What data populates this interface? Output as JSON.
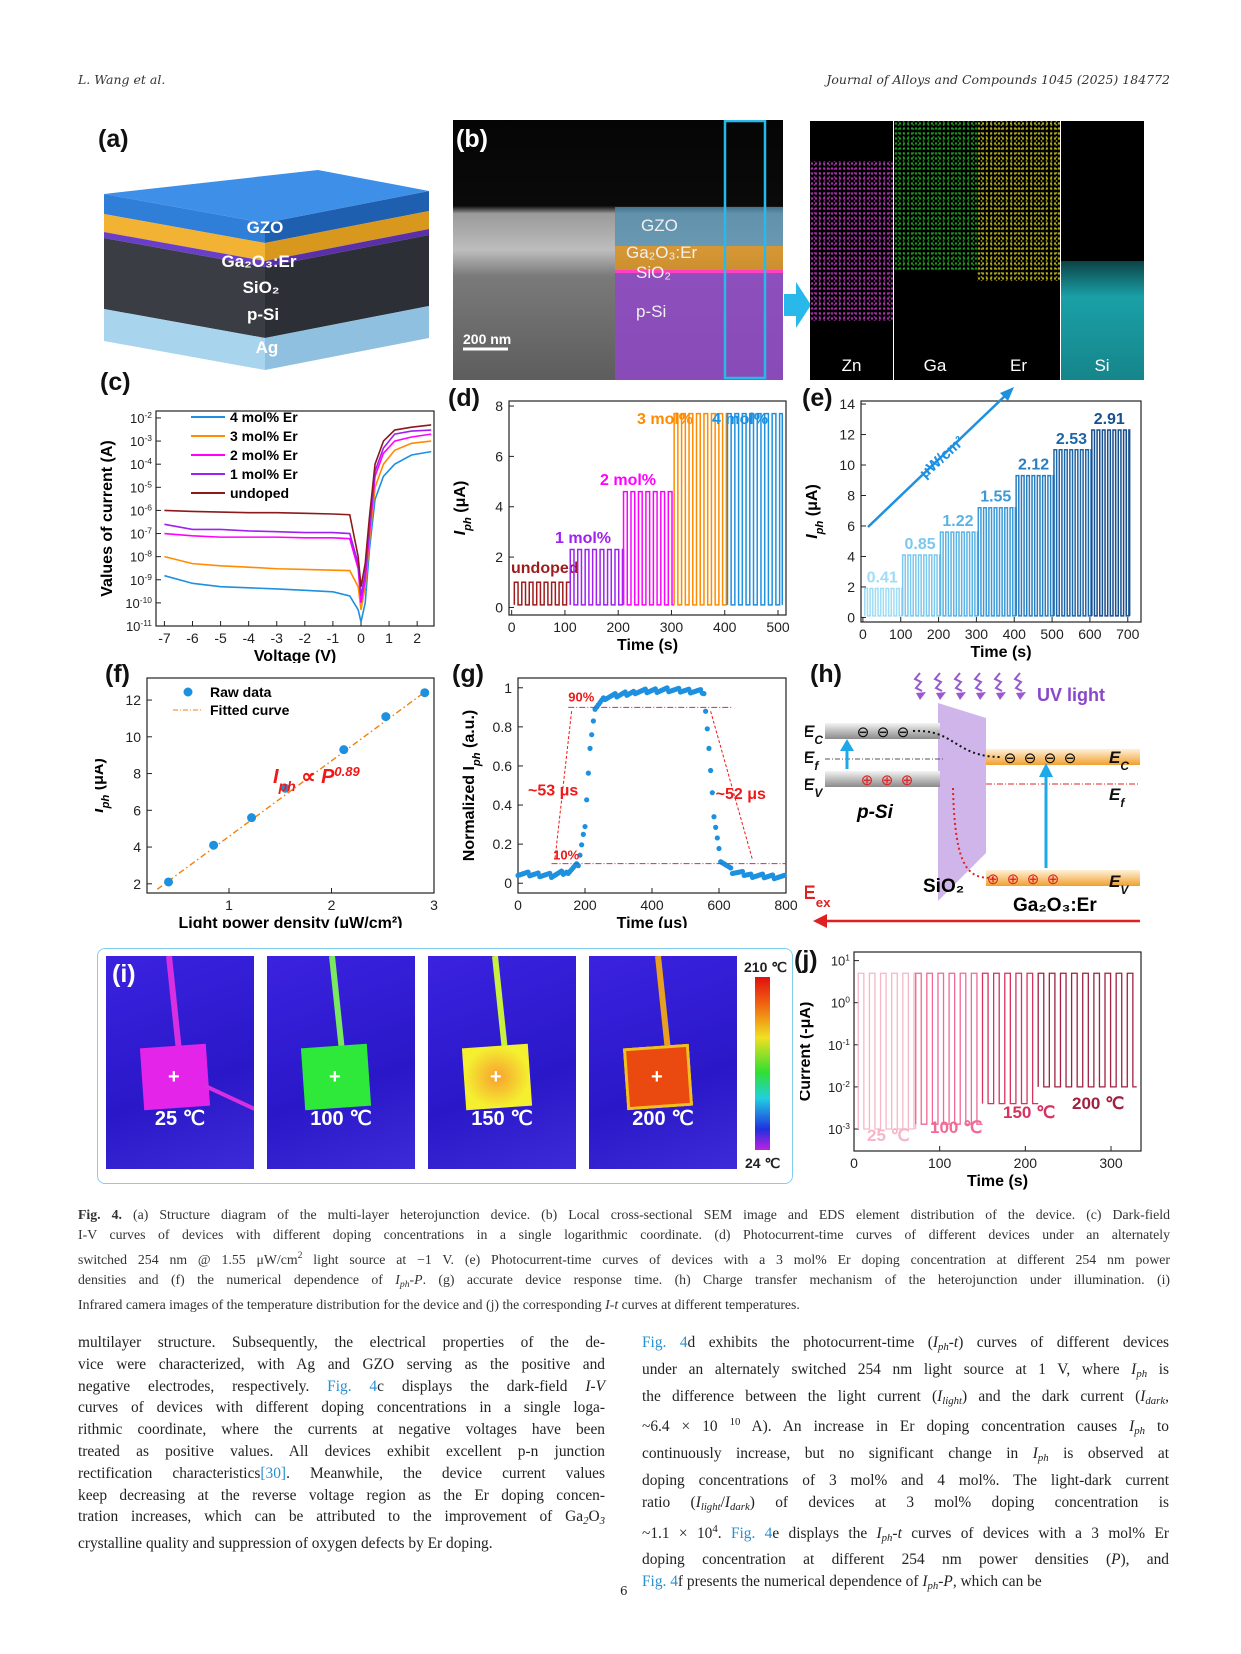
{
  "header": {
    "authors": "L. Wang et al.",
    "journal": "Journal of Alloys and Compounds 1045 (2025) 184772"
  },
  "figure": {
    "panel_labels": [
      "(a)",
      "(b)",
      "(c)",
      "(d)",
      "(e)",
      "(f)",
      "(g)",
      "(h)",
      "(i)",
      "(j)"
    ],
    "panel_a": {
      "layers": [
        "GZO",
        "Ga₂O₃:Er",
        "SiO₂",
        "p-Si",
        "Ag"
      ],
      "colors": [
        "#2f7fd8",
        "#f2b233",
        "#6a3fc8",
        "#3a3d44",
        "#a8d4ee"
      ]
    },
    "panel_b": {
      "layers": [
        "GZO",
        "Ga₂O₃:Er",
        "SiO₂",
        "p-Si"
      ],
      "scale_bar": "200 nm"
    },
    "eds": [
      {
        "label": "Zn",
        "color": "#e040e0"
      },
      {
        "label": "Ga",
        "color": "#22cc22"
      },
      {
        "label": "Er",
        "color": "#e8e020"
      },
      {
        "label": "Si",
        "color": "#20c8d0"
      }
    ],
    "panel_h": {
      "uv": "UV light",
      "ec": "E",
      "ec_sub": "C",
      "ef": "E",
      "ef_sub": "f",
      "ev": "E",
      "ev_sub": "V",
      "psi": "p-Si",
      "sio2": "SiO₂",
      "ga2o3": "Ga₂O₃:Er",
      "eex": "E",
      "eex_sub": "ex",
      "electron": "⊖",
      "hole": "⊕"
    },
    "panel_i": {
      "tiles": [
        {
          "temp": "25 ℃",
          "square": "#e424e8",
          "wire": "#d830e0"
        },
        {
          "temp": "100 ℃",
          "square": "#2ee83a",
          "wire": "#7ae860"
        },
        {
          "temp": "150 ℃",
          "square": "#f4f030",
          "wire": "#c8f040"
        },
        {
          "temp": "200 ℃",
          "square": "#ea4a10",
          "wire": "#e8a020"
        }
      ],
      "colorbar_max": "210 ℃",
      "colorbar_min": "24 ℃",
      "plus": "+"
    }
  },
  "chart_data": [
    {
      "id": "c",
      "type": "line",
      "xlabel": "Voltage (V)",
      "ylabel": "Values of current (A)",
      "xlim": [
        -7.3,
        2.6
      ],
      "ylim": [
        1e-11,
        0.02
      ],
      "ylog": true,
      "x_ticks": [
        -7,
        -6,
        -5,
        -4,
        -3,
        -2,
        -1,
        0,
        1,
        2
      ],
      "y_tick_exponents": [
        -2,
        -3,
        -4,
        -5,
        -6,
        -7,
        -8,
        -9,
        -10,
        -11
      ],
      "legend": "top-left",
      "x": [
        -7,
        -6,
        -5,
        -4,
        -3,
        -2,
        -1,
        -0.4,
        -0.1,
        0,
        0.15,
        0.3,
        0.5,
        0.8,
        1.2,
        1.8,
        2.5
      ],
      "series": [
        {
          "name": "4 mol% Er",
          "color": "#1e90e0",
          "values": [
            1.5e-09,
            7e-10,
            5e-10,
            4.5e-10,
            4e-10,
            3.5e-10,
            3e-10,
            2e-10,
            5e-11,
            1.5e-11,
            1e-10,
            2e-08,
            3e-06,
            3e-05,
            0.0001,
            0.00025,
            0.00035
          ]
        },
        {
          "name": "3 mol% Er",
          "color": "#ff8c00",
          "values": [
            1e-08,
            5e-09,
            4e-09,
            3.5e-09,
            3e-09,
            2.8e-09,
            2.6e-09,
            2.5e-09,
            5e-10,
            5e-11,
            5e-10,
            5e-08,
            1e-05,
            0.0001,
            0.0004,
            0.0008,
            0.001
          ]
        },
        {
          "name": "2 mol% Er",
          "color": "#ff00ff",
          "values": [
            1e-07,
            8e-08,
            7e-08,
            7e-08,
            7e-08,
            6.5e-08,
            6.5e-08,
            6e-08,
            3e-09,
            1e-10,
            1e-09,
            1e-07,
            3e-05,
            0.0003,
            0.001,
            0.0015,
            0.002
          ]
        },
        {
          "name": "1 mol% Er",
          "color": "#a020f0",
          "values": [
            2.5e-07,
            1.5e-07,
            1.5e-07,
            1.3e-07,
            1.2e-07,
            1.1e-07,
            1.1e-07,
            1e-07,
            5e-09,
            2e-10,
            2e-09,
            2e-07,
            5e-05,
            0.0005,
            0.002,
            0.0027,
            0.003
          ]
        },
        {
          "name": "undoped",
          "color": "#8b1a1a",
          "values": [
            1e-06,
            9e-07,
            8.5e-07,
            8e-07,
            8e-07,
            7.5e-07,
            7e-07,
            6.5e-07,
            1e-08,
            5e-10,
            5e-09,
            5e-07,
            0.0001,
            0.001,
            0.003,
            0.004,
            0.005
          ]
        }
      ]
    },
    {
      "id": "d",
      "type": "line",
      "xlabel": "Time (s)",
      "ylabel": "I",
      "ylabel_sub": "ph",
      "ylabel_unit": " (μA)",
      "xlim": [
        -5,
        515
      ],
      "ylim": [
        -0.3,
        8.2
      ],
      "x_ticks": [
        0,
        100,
        200,
        300,
        400,
        500
      ],
      "y_ticks": [
        0,
        2,
        4,
        6,
        8
      ],
      "series": [
        {
          "name": "undoped",
          "color": "#a01c1c",
          "start": 5,
          "end": 110,
          "high": 1.0,
          "low": 0.1,
          "period": 14
        },
        {
          "name": "1 mol%",
          "color": "#a020f0",
          "start": 110,
          "end": 210,
          "high": 2.3,
          "low": 0.1,
          "period": 14
        },
        {
          "name": "2 mol%",
          "color": "#ff00ff",
          "start": 210,
          "end": 305,
          "high": 4.6,
          "low": 0.1,
          "period": 14
        },
        {
          "name": "3 mol%",
          "color": "#ff8c00",
          "start": 305,
          "end": 405,
          "high": 7.7,
          "low": 0.1,
          "period": 14
        },
        {
          "name": "4 mol%",
          "color": "#1e90e0",
          "start": 405,
          "end": 508,
          "high": 7.7,
          "low": 0.1,
          "period": 14
        }
      ]
    },
    {
      "id": "e",
      "type": "line",
      "xlabel": "Time (s)",
      "ylabel": "I",
      "ylabel_sub": "ph",
      "ylabel_unit": " (μA)",
      "xlim": [
        -5,
        735
      ],
      "ylim": [
        -0.3,
        14.2
      ],
      "x_ticks": [
        0,
        100,
        200,
        300,
        400,
        500,
        600,
        700
      ],
      "y_ticks": [
        0,
        2,
        4,
        6,
        8,
        10,
        12,
        14
      ],
      "annotation": "μW/cm²",
      "series": [
        {
          "name": "0.41",
          "color": "#9fdcf5",
          "start": 5,
          "end": 105,
          "high": 1.9,
          "low": 0.1,
          "period": 14
        },
        {
          "name": "0.85",
          "color": "#7cc8ee",
          "start": 105,
          "end": 205,
          "high": 4.1,
          "low": 0.1,
          "period": 14
        },
        {
          "name": "1.22",
          "color": "#5ab4e4",
          "start": 205,
          "end": 305,
          "high": 5.6,
          "low": 0.1,
          "period": 14
        },
        {
          "name": "1.55",
          "color": "#3c9ad6",
          "start": 305,
          "end": 405,
          "high": 7.2,
          "low": 0.1,
          "period": 14
        },
        {
          "name": "2.12",
          "color": "#2a7fc0",
          "start": 405,
          "end": 505,
          "high": 9.3,
          "low": 0.1,
          "period": 14
        },
        {
          "name": "2.53",
          "color": "#1f66a8",
          "start": 505,
          "end": 605,
          "high": 11.0,
          "low": 0.1,
          "period": 14
        },
        {
          "name": "2.91",
          "color": "#174f8f",
          "start": 605,
          "end": 705,
          "high": 12.3,
          "low": 0.1,
          "period": 14
        }
      ]
    },
    {
      "id": "f",
      "type": "scatter",
      "xlabel": "Light power density (μW/cm²)",
      "ylabel": "I",
      "ylabel_sub": "ph",
      "ylabel_unit": " (μA)",
      "xlim": [
        0.2,
        3.0
      ],
      "ylim": [
        1.5,
        13.2
      ],
      "x_ticks": [
        1,
        2,
        3
      ],
      "y_ticks": [
        2,
        4,
        6,
        8,
        10,
        12
      ],
      "legend": "top-left",
      "series": [
        {
          "name": "Raw data",
          "color": "#1e90e0",
          "x": [
            0.41,
            0.85,
            1.22,
            1.55,
            2.12,
            2.53,
            2.91
          ],
          "values": [
            2.1,
            4.1,
            5.6,
            7.2,
            9.3,
            11.1,
            12.4
          ]
        },
        {
          "name": "Fitted curve",
          "color": "#f08010"
        }
      ],
      "annotation": {
        "base": "I",
        "sub": "ph",
        "mid": " ∝ ",
        "p": "P",
        "exp": "0.89"
      }
    },
    {
      "id": "g",
      "type": "scatter",
      "xlabel": "Time (μs)",
      "ylabel": "Normalized I",
      "ylabel_sub": "ph",
      "ylabel_unit": " (a.u.)",
      "xlim": [
        0,
        800
      ],
      "ylim": [
        -0.05,
        1.05
      ],
      "x_ticks": [
        0,
        200,
        400,
        600,
        800
      ],
      "y_ticks": [
        0.0,
        0.2,
        0.4,
        0.6,
        0.8,
        1.0
      ],
      "series": [
        {
          "color": "#1e90e0",
          "points": [
            [
              0,
              0.05
            ],
            [
              100,
              0.04
            ],
            [
              150,
              0.06
            ],
            [
              180,
              0.1
            ],
            [
              200,
              0.3
            ],
            [
              215,
              0.7
            ],
            [
              230,
              0.9
            ],
            [
              260,
              0.95
            ],
            [
              350,
              0.98
            ],
            [
              450,
              0.99
            ],
            [
              555,
              0.98
            ],
            [
              570,
              0.7
            ],
            [
              585,
              0.35
            ],
            [
              605,
              0.12
            ],
            [
              640,
              0.06
            ],
            [
              700,
              0.04
            ],
            [
              800,
              0.03
            ]
          ]
        }
      ],
      "annotations": {
        "high_label": "90%",
        "low_label": "10%",
        "rise": "~53 μs",
        "fall": "~52 μs",
        "high": 0.9,
        "low": 0.1
      }
    },
    {
      "id": "j",
      "type": "line",
      "xlabel": "Time (s)",
      "ylabel": "Current (-μA)",
      "xlim": [
        0,
        335
      ],
      "ylim": [
        0.0003,
        16.0
      ],
      "ylog": true,
      "x_ticks": [
        0,
        100,
        200,
        300
      ],
      "y_tick_exponents": [
        1,
        0,
        -1,
        -2,
        -3
      ],
      "series": [
        {
          "name": "25 ℃",
          "color": "#f7b6c8",
          "start": 5,
          "end": 72,
          "high": 5,
          "low": 0.001,
          "period": 13
        },
        {
          "name": "100 ℃",
          "color": "#f06a95",
          "start": 72,
          "end": 150,
          "high": 5,
          "low": 0.0013,
          "period": 13
        },
        {
          "name": "150 ℃",
          "color": "#d8325f",
          "start": 150,
          "end": 215,
          "high": 5,
          "low": 0.004,
          "period": 13
        },
        {
          "name": "200 ℃",
          "color": "#a0213f",
          "start": 215,
          "end": 330,
          "high": 5,
          "low": 0.01,
          "period": 13
        }
      ]
    }
  ],
  "caption": [
    [
      [
        "Fig. 4.",
        "b"
      ],
      [
        "  (a) Structure diagram of the multi-layer heterojunction device. (b) Local cross-sectional SEM image and EDS element distribution of the device. (c) Dark-field",
        "n"
      ]
    ],
    [
      [
        "I-V curves of devices with different doping concentrations in a single logarithmic coordinate. (d) Photocurrent-time curves of different devices under an alternately",
        "n"
      ]
    ],
    [
      [
        "switched 254 nm @ 1.55 μW/cm",
        "n"
      ],
      [
        "2",
        "sup"
      ],
      [
        " light source at −1 V. (e) Photocurrent-time curves of devices with a 3 mol% Er doping concentration at different 254 nm power",
        "n"
      ]
    ],
    [
      [
        "densities and (f) the numerical dependence of ",
        "n"
      ],
      [
        "I",
        "i"
      ],
      [
        "ph",
        "sub"
      ],
      [
        "-",
        "n"
      ],
      [
        "P",
        "i"
      ],
      [
        ". (g) accurate device response time. (h) Charge transfer mechanism of the heterojunction under illumination. (i)",
        "n"
      ]
    ],
    [
      [
        "Infrared camera images of the temperature distribution for the device and (j) the corresponding ",
        "n"
      ],
      [
        "I-t",
        "i"
      ],
      [
        " curves at different temperatures.",
        "n"
      ]
    ]
  ],
  "body_left": [
    [
      [
        "multilayer structure. Subsequently, the electrical properties of the de-",
        "n"
      ]
    ],
    [
      [
        "vice were characterized, with Ag and GZO serving as the positive and",
        "n"
      ]
    ],
    [
      [
        "negative electrodes, respectively. ",
        "n"
      ],
      [
        "Fig. 4",
        "l"
      ],
      [
        "c displays the dark-field ",
        "n"
      ],
      [
        "I-V",
        "i"
      ]
    ],
    [
      [
        "curves of devices with different doping concentrations in a single loga-",
        "n"
      ]
    ],
    [
      [
        "rithmic coordinate, where the currents at negative voltages have been",
        "n"
      ]
    ],
    [
      [
        "treated as positive values. All devices exhibit excellent p-n junction",
        "n"
      ]
    ],
    [
      [
        "rectification characteristics",
        "n"
      ],
      [
        "[30]",
        "l"
      ],
      [
        ". Meanwhile, the device current values",
        "n"
      ]
    ],
    [
      [
        "keep decreasing at the reverse voltage region as the Er doping concen-",
        "n"
      ]
    ],
    [
      [
        "tration increases, which can be attributed to the improvement of Ga",
        "n"
      ],
      [
        "2",
        "sub"
      ],
      [
        "O",
        "n"
      ],
      [
        "3",
        "sub"
      ]
    ],
    [
      [
        "crystalline quality and suppression of oxygen defects by Er doping.",
        "n"
      ]
    ]
  ],
  "body_right": [
    [
      [
        "Fig. 4",
        "l"
      ],
      [
        "d exhibits the photocurrent-time (",
        "n"
      ],
      [
        "I",
        "i"
      ],
      [
        "ph",
        "sub"
      ],
      [
        "-",
        "n"
      ],
      [
        "t",
        "i"
      ],
      [
        ") curves of different devices",
        "n"
      ]
    ],
    [
      [
        "under an alternately switched 254 nm light source at    1 V, where ",
        "n"
      ],
      [
        "I",
        "i"
      ],
      [
        "ph",
        "sub"
      ],
      [
        " is",
        "n"
      ]
    ],
    [
      [
        "the difference between the light current (",
        "n"
      ],
      [
        "I",
        "i"
      ],
      [
        "light",
        "sub"
      ],
      [
        ") and the dark current (",
        "n"
      ],
      [
        "I",
        "i"
      ],
      [
        "dark",
        "sub"
      ],
      [
        ",",
        "n"
      ]
    ],
    [
      [
        "~6.4 × 10 ",
        "n"
      ],
      [
        "10",
        "sup"
      ],
      [
        " A). An increase in Er doping concentration causes ",
        "n"
      ],
      [
        "I",
        "i"
      ],
      [
        "ph",
        "sub"
      ],
      [
        " to",
        "n"
      ]
    ],
    [
      [
        "continuously increase, but no significant change in ",
        "n"
      ],
      [
        "I",
        "i"
      ],
      [
        "ph",
        "sub"
      ],
      [
        " is observed at",
        "n"
      ]
    ],
    [
      [
        "doping concentrations of 3 mol% and 4 mol%. The light-dark current",
        "n"
      ]
    ],
    [
      [
        "ratio (",
        "n"
      ],
      [
        "I",
        "i"
      ],
      [
        "light",
        "sub"
      ],
      [
        "/",
        "n"
      ],
      [
        "I",
        "i"
      ],
      [
        "dark",
        "sub"
      ],
      [
        ") of devices at 3 mol% doping concentration is",
        "n"
      ]
    ],
    [
      [
        "~1.1 × 10",
        "n"
      ],
      [
        "4",
        "sup"
      ],
      [
        ". ",
        "n"
      ],
      [
        "Fig. 4",
        "l"
      ],
      [
        "e displays the ",
        "n"
      ],
      [
        "I",
        "i"
      ],
      [
        "ph",
        "sub"
      ],
      [
        "-",
        "n"
      ],
      [
        "t",
        "i"
      ],
      [
        " curves of devices with a 3 mol% Er",
        "n"
      ]
    ],
    [
      [
        "doping concentration at different 254 nm power densities (",
        "n"
      ],
      [
        "P",
        "i"
      ],
      [
        "), and",
        "n"
      ]
    ],
    [
      [
        "Fig. 4",
        "l"
      ],
      [
        "f presents the numerical dependence of ",
        "n"
      ],
      [
        "I",
        "i"
      ],
      [
        "ph",
        "sub"
      ],
      [
        "-",
        "n"
      ],
      [
        "P",
        "i"
      ],
      [
        ", which can be",
        "n"
      ]
    ]
  ],
  "page_number": "6"
}
